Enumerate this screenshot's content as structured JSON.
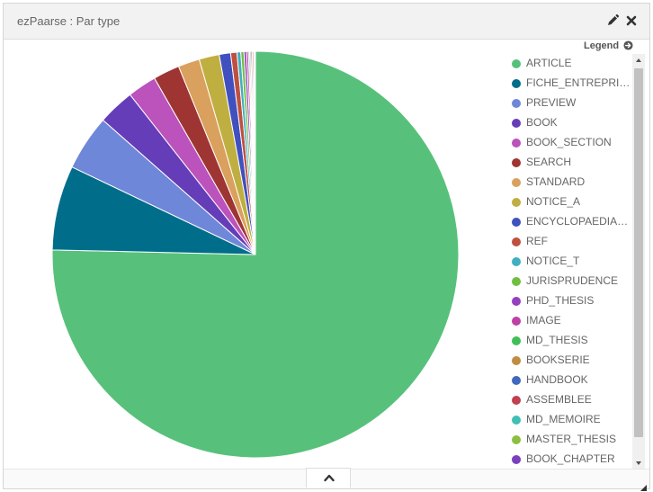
{
  "panel": {
    "title": "ezPaarse : Par type",
    "edit_icon": "pencil-icon",
    "close_icon": "close-icon",
    "collapse_icon": "chevron-up-icon",
    "resize_icon": "resize-grip-icon"
  },
  "legend": {
    "toggle_label": "Legend",
    "toggle_icon": "circle-arrow-right-icon",
    "items": [
      {
        "label": "ARTICLE",
        "color": "#57c17b"
      },
      {
        "label": "FICHE_ENTREPRISE",
        "color": "#006e8a"
      },
      {
        "label": "PREVIEW",
        "color": "#6f87d8"
      },
      {
        "label": "BOOK",
        "color": "#663db8"
      },
      {
        "label": "BOOK_SECTION",
        "color": "#bc52bc"
      },
      {
        "label": "SEARCH",
        "color": "#9e3533"
      },
      {
        "label": "STANDARD",
        "color": "#daa05d"
      },
      {
        "label": "NOTICE_A",
        "color": "#bfaf40"
      },
      {
        "label": "ENCYCLOPAEDIA_ARTICLE",
        "color": "#4050bf"
      },
      {
        "label": "REF",
        "color": "#bf5040"
      },
      {
        "label": "NOTICE_T",
        "color": "#40afbf"
      },
      {
        "label": "JURISPRUDENCE",
        "color": "#70bf40"
      },
      {
        "label": "PHD_THESIS",
        "color": "#9440bf"
      },
      {
        "label": "IMAGE",
        "color": "#bf40a3"
      },
      {
        "label": "MD_THESIS",
        "color": "#40bf59"
      },
      {
        "label": "BOOKSERIE",
        "color": "#bf8c40"
      },
      {
        "label": "HANDBOOK",
        "color": "#4068bf"
      },
      {
        "label": "ASSEMBLEE",
        "color": "#bf4050"
      },
      {
        "label": "MD_MEMOIRE",
        "color": "#40bfb3"
      },
      {
        "label": "MASTER_THESIS",
        "color": "#8cbf40"
      },
      {
        "label": "BOOK_CHAPTER",
        "color": "#7a40bf"
      }
    ]
  },
  "chart_data": {
    "type": "pie",
    "categories": [
      "ARTICLE",
      "FICHE_ENTREPRISE",
      "PREVIEW",
      "BOOK",
      "BOOK_SECTION",
      "SEARCH",
      "STANDARD",
      "NOTICE_A",
      "ENCYCLOPAEDIA_ARTICLE",
      "REF",
      "NOTICE_T",
      "JURISPRUDENCE",
      "PHD_THESIS",
      "IMAGE",
      "MD_THESIS",
      "BOOKSERIE",
      "HANDBOOK",
      "ASSEMBLEE",
      "MD_MEMOIRE",
      "MASTER_THESIS",
      "BOOK_CHAPTER"
    ],
    "values": [
      75.1,
      6.7,
      4.4,
      2.9,
      2.3,
      2.1,
      1.7,
      1.6,
      0.9,
      0.5,
      0.3,
      0.25,
      0.2,
      0.15,
      0.1,
      0.1,
      0.1,
      0.1,
      0.05,
      0.05,
      0.05
    ],
    "colors": [
      "#57c17b",
      "#006e8a",
      "#6f87d8",
      "#663db8",
      "#bc52bc",
      "#9e3533",
      "#daa05d",
      "#bfaf40",
      "#4050bf",
      "#bf5040",
      "#40afbf",
      "#70bf40",
      "#9440bf",
      "#bf40a3",
      "#40bf59",
      "#bf8c40",
      "#4068bf",
      "#bf4050",
      "#40bfb3",
      "#8cbf40",
      "#7a40bf"
    ],
    "start": "12 o'clock",
    "direction": "clockwise",
    "legend_position": "right",
    "title": ""
  }
}
